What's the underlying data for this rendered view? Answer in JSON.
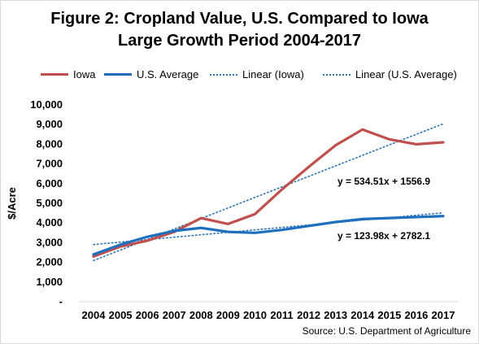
{
  "title_line1": "Figure 2: Cropland Value, U.S. Compared to Iowa",
  "title_line2": "Large Growth Period 2004-2017",
  "source": "Source: U.S. Department of Agriculture",
  "legend": {
    "iowa": "Iowa",
    "us": "U.S. Average",
    "linear_iowa": "Linear (Iowa)",
    "linear_us": "Linear (U.S. Average)"
  },
  "colors": {
    "iowa": "#c0504d",
    "us": "#1f6fbf",
    "linear_iowa": "#2e75b6",
    "linear_us": "#2e75b6"
  },
  "chart_data": {
    "type": "line",
    "title": "Figure 2: Cropland Value, U.S. Compared to Iowa Large Growth Period 2004-2017",
    "ylabel": "$/Acre",
    "xlabel": "",
    "x": [
      "2004",
      "2005",
      "2006",
      "2007",
      "2008",
      "2009",
      "2010",
      "2011",
      "2012",
      "2013",
      "2014",
      "2015",
      "2016",
      "2017"
    ],
    "y_ticks": [
      "-",
      "1,000",
      "2,000",
      "3,000",
      "4,000",
      "5,000",
      "6,000",
      "7,000",
      "8,000",
      "9,000",
      "10,000"
    ],
    "ylim": [
      0,
      10000
    ],
    "grid": false,
    "legend_position": "top",
    "series": [
      {
        "name": "Iowa",
        "style": "solid",
        "values": [
          2300,
          2800,
          3100,
          3550,
          4250,
          3950,
          4450,
          5700,
          6850,
          7950,
          8750,
          8250,
          8000,
          8100
        ]
      },
      {
        "name": "U.S. Average",
        "style": "solid",
        "values": [
          2400,
          2900,
          3300,
          3600,
          3750,
          3550,
          3500,
          3650,
          3850,
          4050,
          4200,
          4250,
          4300,
          4350
        ]
      }
    ],
    "trendlines": [
      {
        "name": "Linear (Iowa)",
        "slope": 534.51,
        "intercept": 1556.9,
        "equation": "y = 534.51x + 1556.9"
      },
      {
        "name": "Linear (U.S. Average)",
        "slope": 123.98,
        "intercept": 2782.1,
        "equation": "y = 123.98x + 2782.1"
      }
    ]
  }
}
